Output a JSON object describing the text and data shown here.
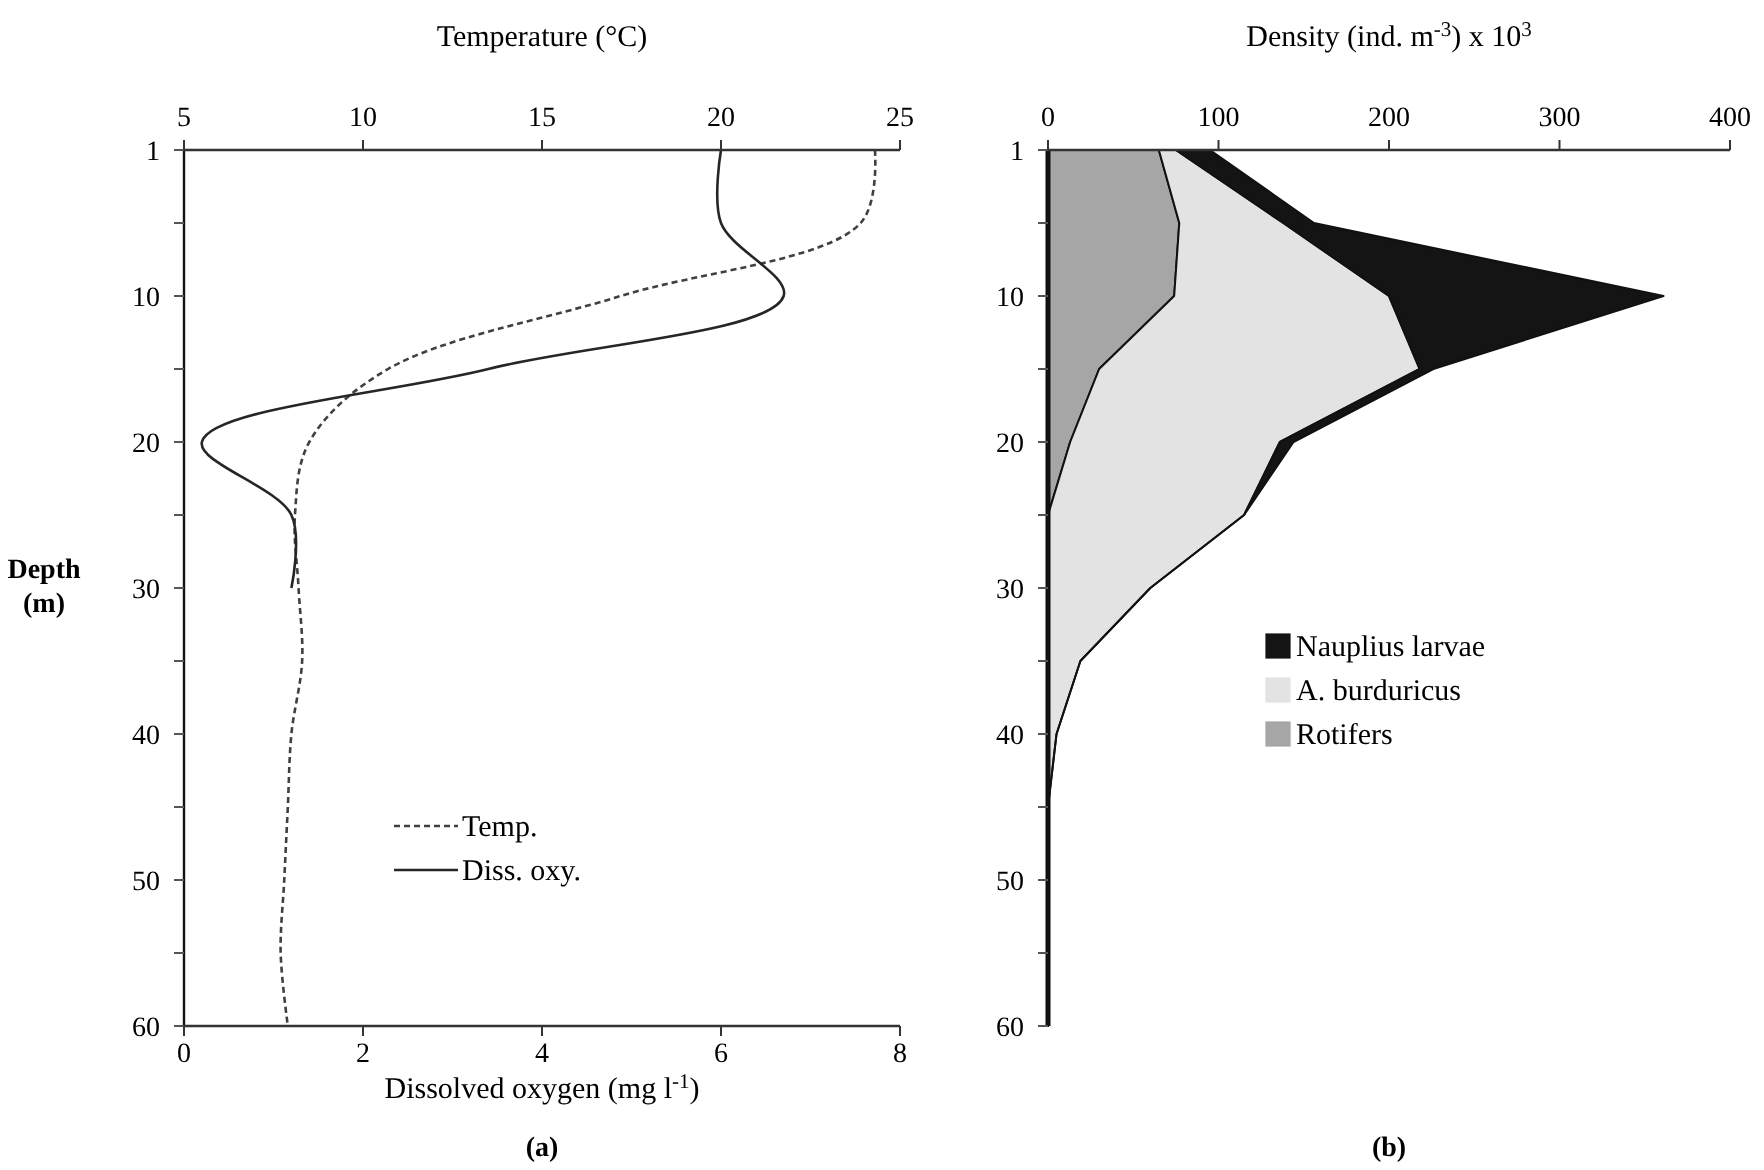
{
  "chart_data": [
    {
      "type": "line",
      "orientation": "horizontal",
      "x2label": "Temperature (°C)",
      "xlabel": "Dissolved oxygen (mg l$^{-1}$)",
      "ylabel": "Depth (m)",
      "categories": [
        "1",
        null,
        "10",
        null,
        "20",
        null,
        "30",
        null,
        "40",
        null,
        "50",
        null,
        "60"
      ],
      "xlim": [
        0,
        8
      ],
      "xticks": [
        0,
        2,
        4,
        6,
        8
      ],
      "x2lim": [
        5,
        25
      ],
      "x2ticks": [
        5,
        10,
        15,
        20,
        25
      ],
      "series": [
        {
          "name": "Temp.",
          "color": "#404040",
          "axis": "x2",
          "line_style": "dashed",
          "values": [
            24.3,
            23.9,
            17.2,
            10.7,
            8.5,
            8.1,
            8.2,
            8.3,
            8.0,
            7.9,
            7.8,
            7.7,
            7.9
          ]
        },
        {
          "name": "Diss. oxy.",
          "color": "#262626",
          "line_style": "solid",
          "values": [
            6.0,
            6.0,
            6.7,
            3.4,
            0.2,
            1.2,
            1.2,
            null,
            null,
            null,
            null,
            null,
            null
          ]
        }
      ],
      "legend": "bottom",
      "marker": "none",
      "annotations": [
        "(a)"
      ]
    },
    {
      "type": "area",
      "orientation": "horizontal",
      "stacked": true,
      "xlabel": "Density (ind. m$^{-3}$) x 10$^{3}$",
      "categories": [
        "1",
        null,
        "10",
        null,
        "20",
        null,
        "30",
        null,
        "40",
        null,
        "50",
        null,
        "60"
      ],
      "xlim": [
        0,
        400
      ],
      "xticks": [
        0,
        100,
        200,
        300,
        400
      ],
      "series": [
        {
          "name": "Rotifers",
          "color": "#a6a6a6",
          "values": [
            65,
            77,
            74,
            30,
            13,
            0,
            0,
            0,
            0,
            0,
            0,
            0,
            0
          ]
        },
        {
          "name": "A. burduricus",
          "color": "#e3e3e3",
          "values": [
            10,
            61,
            126,
            188,
            123,
            115,
            60,
            19,
            5,
            0,
            0,
            0,
            0
          ]
        },
        {
          "name": "Nauplius larvae",
          "color": "#141414",
          "values": [
            20,
            18,
            161,
            8,
            8,
            0,
            0,
            0,
            0,
            0,
            0,
            0,
            0
          ]
        }
      ],
      "legend": "bottom",
      "annotations": [
        "(b)"
      ]
    }
  ]
}
